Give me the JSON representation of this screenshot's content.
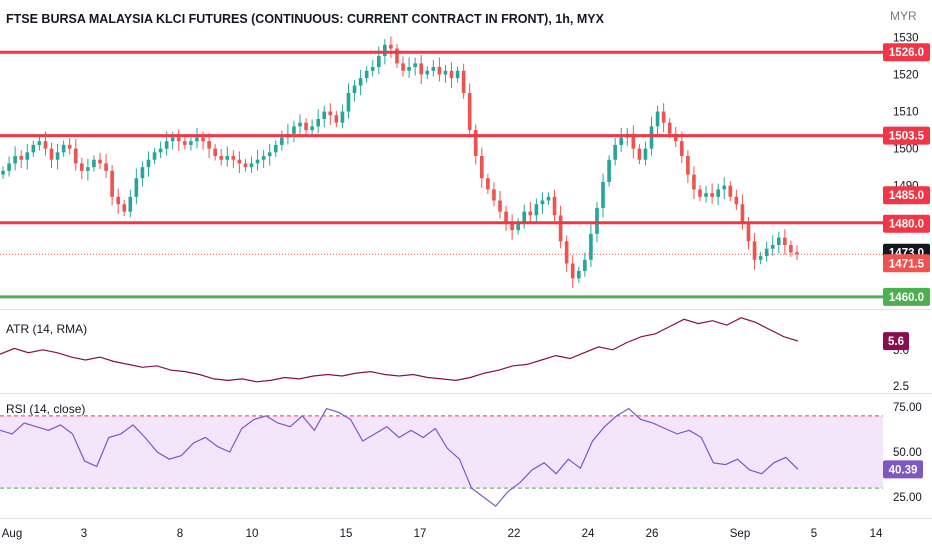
{
  "header": {
    "title": "FTSE BURSA MALAYSIA KLCI FUTURES (CONTINUOUS: CURRENT CONTRACT IN FRONT), 1h, MYX",
    "currency": "MYR"
  },
  "colors": {
    "up": "#26a69a",
    "down": "#ef5350",
    "level_red": "#f23645",
    "level_green": "#4caf50",
    "atr_line": "#880e4f",
    "rsi_line": "#7e57c2",
    "rsi_fill": "#f3e6fb",
    "current_badge": "#131722",
    "atr_badge": "#880e4f",
    "rsi_badge": "#7e57c2"
  },
  "chart_data": [
    {
      "type": "candlestick",
      "title": "FTSE BURSA MALAYSIA KLCI FUTURES (CONTINUOUS: CURRENT CONTRACT IN FRONT), 1h, MYX",
      "ylabel": "MYR",
      "ylim": [
        1457,
        1532
      ],
      "y_ticks": [
        1460,
        1470,
        1480,
        1490,
        1500,
        1510,
        1520,
        1530
      ],
      "x_ticks": [
        "Aug",
        "3",
        "8",
        "10",
        "15",
        "17",
        "22",
        "24",
        "26",
        "Sep",
        "5",
        "14"
      ],
      "close_series": [
        1494,
        1496,
        1498,
        1497,
        1499,
        1501,
        1502,
        1500,
        1497,
        1499,
        1501,
        1500,
        1496,
        1494,
        1495,
        1497,
        1496,
        1494,
        1487,
        1485,
        1483,
        1487,
        1492,
        1495,
        1497,
        1499,
        1500,
        1502,
        1503,
        1502,
        1501,
        1502,
        1503,
        1502,
        1500,
        1498,
        1497,
        1498,
        1497,
        1496,
        1495,
        1496,
        1497,
        1498,
        1499,
        1501,
        1503,
        1504,
        1506,
        1507,
        1505,
        1506,
        1508,
        1510,
        1509,
        1507,
        1510,
        1515,
        1517,
        1519,
        1521,
        1522,
        1525,
        1528,
        1527,
        1523,
        1521,
        1522,
        1523,
        1520,
        1521,
        1522,
        1520,
        1521,
        1519,
        1521,
        1515,
        1505,
        1498,
        1492,
        1489,
        1486,
        1483,
        1480,
        1478,
        1480,
        1483,
        1482,
        1485,
        1486,
        1487,
        1482,
        1475,
        1469,
        1465,
        1467,
        1470,
        1477,
        1484,
        1491,
        1497,
        1501,
        1503,
        1504,
        1500,
        1497,
        1500,
        1506,
        1510,
        1507,
        1504,
        1502,
        1498,
        1493,
        1489,
        1487,
        1488,
        1487,
        1489,
        1490,
        1487,
        1485,
        1480,
        1475,
        1470,
        1471,
        1473,
        1474,
        1476,
        1474,
        1472,
        1471.5
      ],
      "price_levels": [
        {
          "value": 1526.0,
          "label": "1526.0",
          "color": "#f23645"
        },
        {
          "value": 1503.5,
          "label": "1503.5",
          "color": "#f23645"
        },
        {
          "value": 1485.0,
          "label": "1485.0",
          "color": "#f23645"
        },
        {
          "value": 1480.0,
          "label": "1480.0",
          "color": "#f23645"
        },
        {
          "value": 1473.0,
          "label": "1473.0",
          "color": "#131722"
        },
        {
          "value": 1471.5,
          "label": "1471.5",
          "color": "#ef5350"
        },
        {
          "value": 1460.0,
          "label": "1460.0",
          "color": "#4caf50"
        }
      ]
    },
    {
      "type": "line",
      "title": "ATR (14, RMA)",
      "ylim": [
        2.1,
        7.6
      ],
      "y_ticks": [
        2.5,
        5.0
      ],
      "values": [
        4.7,
        5.1,
        4.8,
        5.0,
        4.8,
        4.5,
        4.3,
        4.5,
        4.2,
        4.0,
        3.8,
        3.9,
        3.6,
        3.5,
        3.3,
        3.0,
        2.9,
        3.0,
        2.8,
        2.9,
        3.1,
        3.0,
        3.2,
        3.3,
        3.2,
        3.4,
        3.5,
        3.3,
        3.2,
        3.3,
        3.1,
        3.0,
        2.9,
        3.1,
        3.4,
        3.6,
        3.9,
        4.0,
        4.3,
        4.6,
        4.4,
        4.8,
        5.2,
        5.0,
        5.5,
        5.9,
        6.1,
        6.6,
        7.1,
        6.8,
        7.0,
        6.7,
        7.2,
        6.9,
        6.4,
        5.9,
        5.6
      ],
      "current_label": "5.6"
    },
    {
      "type": "line",
      "title": "RSI (14, close)",
      "ylim": [
        14,
        81
      ],
      "y_ticks": [
        25.0,
        50.0,
        75.0
      ],
      "bands": [
        70,
        30
      ],
      "values": [
        62,
        60,
        66,
        64,
        62,
        65,
        60,
        45,
        42,
        58,
        60,
        65,
        58,
        50,
        46,
        48,
        55,
        58,
        53,
        50,
        63,
        68,
        70,
        66,
        64,
        70,
        62,
        74,
        72,
        68,
        56,
        60,
        64,
        58,
        62,
        58,
        63,
        52,
        46,
        30,
        25,
        20,
        28,
        33,
        40,
        44,
        38,
        46,
        41,
        56,
        64,
        70,
        74,
        68,
        66,
        63,
        60,
        62,
        58,
        44,
        43,
        46,
        40,
        38,
        44,
        47,
        40.39
      ],
      "current_label": "40.39"
    }
  ]
}
